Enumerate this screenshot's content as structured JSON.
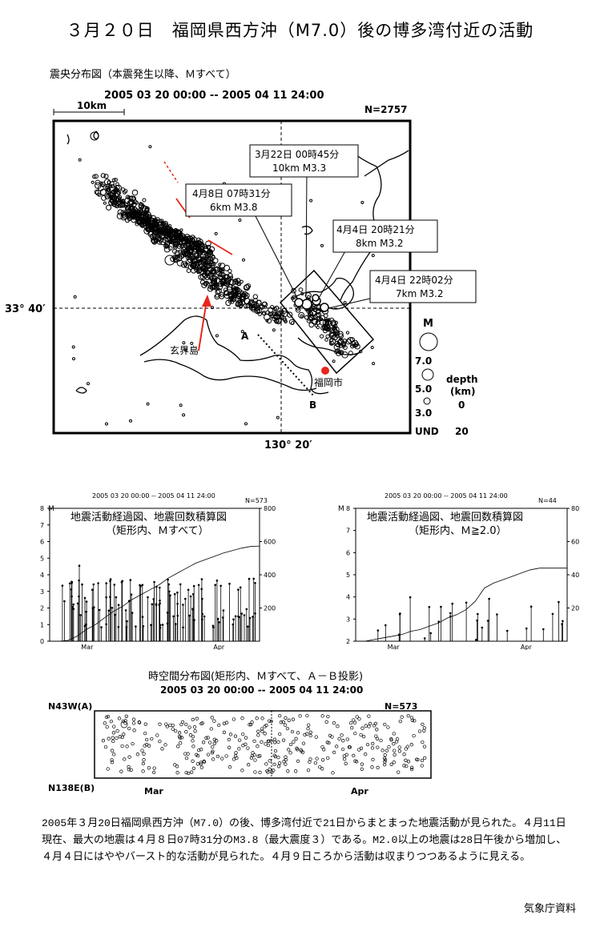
{
  "title": "３月２０日　福岡県西方沖（M7.0）後の博多湾付近の活動",
  "map": {
    "section_label": "震央分布図（本震発生以降、Ｍすべて）",
    "period": "2005 03 20 00:00 -- 2005 04 11 24:00",
    "scale_label": "10km",
    "count": "N=2757",
    "lat_label": "33° 40′",
    "lon_label": "130° 20′",
    "island_label": "玄界島",
    "city_label": "福岡市",
    "point_a": "A",
    "point_b": "B",
    "callouts": [
      {
        "line1": "3月22日 00時45分",
        "line2": "10km M3.3"
      },
      {
        "line1": "4月8日 07時31分",
        "line2": "6km M3.8"
      },
      {
        "line1": "4月4日 20時21分",
        "line2": "8km M3.2"
      },
      {
        "line1": "4月4日 22時02分",
        "line2": "7km M3.2"
      }
    ],
    "legend": {
      "m_title": "M",
      "m_values": [
        "7.0",
        "5.0",
        "3.0",
        "UND"
      ],
      "depth_title": "depth",
      "depth_unit": "(km)",
      "depth_values": [
        "0",
        "20"
      ]
    }
  },
  "chart_data": [
    {
      "type": "line",
      "title": "地震活動経過図、地震回数積算図",
      "subtitle": "（矩形内、Ｍすべて）",
      "header": "2005 03 20 00:00 -- 2005 04 11 24:00",
      "count": "N=573",
      "ylabel_left": "M",
      "yticks_left": [
        "0",
        "1",
        "2",
        "3",
        "4",
        "5",
        "6",
        "7",
        "8"
      ],
      "ylim_left": [
        0,
        8
      ],
      "yticks_right": [
        "200",
        "400",
        "600",
        "800"
      ],
      "ylim_right": [
        0,
        800
      ],
      "xticks": [
        "Mar",
        "Apr"
      ],
      "cumulative_x_days": [
        0,
        1,
        2,
        3,
        4,
        5,
        6,
        7,
        8,
        9,
        10,
        11,
        12,
        13,
        14,
        15,
        16,
        17,
        18,
        19,
        20,
        21,
        22,
        23
      ],
      "cumulative_y": [
        0,
        0,
        5,
        30,
        70,
        100,
        140,
        180,
        210,
        250,
        280,
        310,
        340,
        380,
        410,
        440,
        470,
        490,
        510,
        530,
        545,
        560,
        570,
        573
      ]
    },
    {
      "type": "line",
      "title": "地震活動経過図、地震回数積算図",
      "subtitle": "（矩形内、Ｍ≧2.0）",
      "header": "2005 03 20 00:00 -- 2005 04 11 24:00",
      "count": "N=44",
      "ylabel_left": "M",
      "yticks_left": [
        "2",
        "3",
        "4",
        "5",
        "6",
        "7",
        "8"
      ],
      "ylim_left": [
        2,
        8
      ],
      "yticks_right": [
        "20",
        "40",
        "60",
        "80"
      ],
      "ylim_right": [
        0,
        80
      ],
      "xticks": [
        "Mar",
        "Apr"
      ],
      "cumulative_x_days": [
        0,
        1,
        2,
        3,
        4,
        5,
        6,
        7,
        8,
        9,
        10,
        11,
        12,
        13,
        14,
        15,
        16,
        17,
        18,
        19,
        20,
        21,
        22,
        23
      ],
      "cumulative_y": [
        0,
        0,
        1,
        2,
        3,
        4,
        6,
        7,
        9,
        11,
        14,
        16,
        19,
        24,
        32,
        35,
        37,
        39,
        41,
        43,
        44,
        44,
        44,
        44
      ]
    },
    {
      "type": "scatter",
      "title": "時空間分布図(矩形内、Ｍすべて、Ａ－Ｂ投影)",
      "header": "2005 03 20 00:00 -- 2005 04 11 24:00",
      "count": "N=573",
      "ylabel_top": "N43W(A)",
      "ylabel_bottom": "N138E(B)",
      "xticks": [
        "Mar",
        "Apr"
      ]
    }
  ],
  "paragraph": "2005年３月20日福岡県西方沖（M7.0）の後、博多湾付近で21日からまとまった地震活動が見られた。４月11日現在、最大の地震は４月８日07時31分のM3.8（最大震度３）である。M2.0以上の地震は28日午後から増加し、４月４日にはややバースト的な活動が見られた。４月９日ころから活動は収まりつつあるように見える。",
  "credit": "気象庁資料",
  "colors": {
    "highlight": "#e8261c",
    "ink": "#000000"
  }
}
